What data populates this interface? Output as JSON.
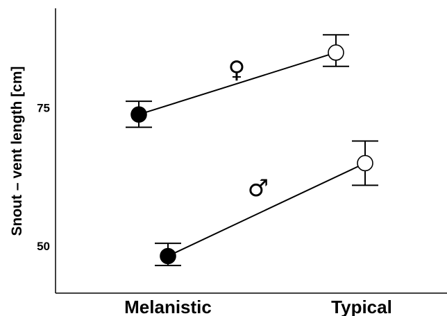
{
  "chart_data": {
    "type": "line",
    "ylabel": "Snout – vent length [cm]",
    "xlabel": "",
    "categories": [
      "Melanistic",
      "Typical"
    ],
    "yticks": [
      50,
      75
    ],
    "ylim": [
      41.5,
      93
    ],
    "marker_fill": [
      "#000000",
      "#ffffff"
    ],
    "series": [
      {
        "name": "♀",
        "values": [
          73.8,
          85.0
        ],
        "err_low": [
          71.5,
          82.5
        ],
        "err_high": [
          76.2,
          88.2
        ]
      },
      {
        "name": "♂",
        "values": [
          48.2,
          65.0
        ],
        "err_low": [
          46.5,
          61.0
        ],
        "err_high": [
          50.5,
          69.0
        ]
      }
    ]
  }
}
